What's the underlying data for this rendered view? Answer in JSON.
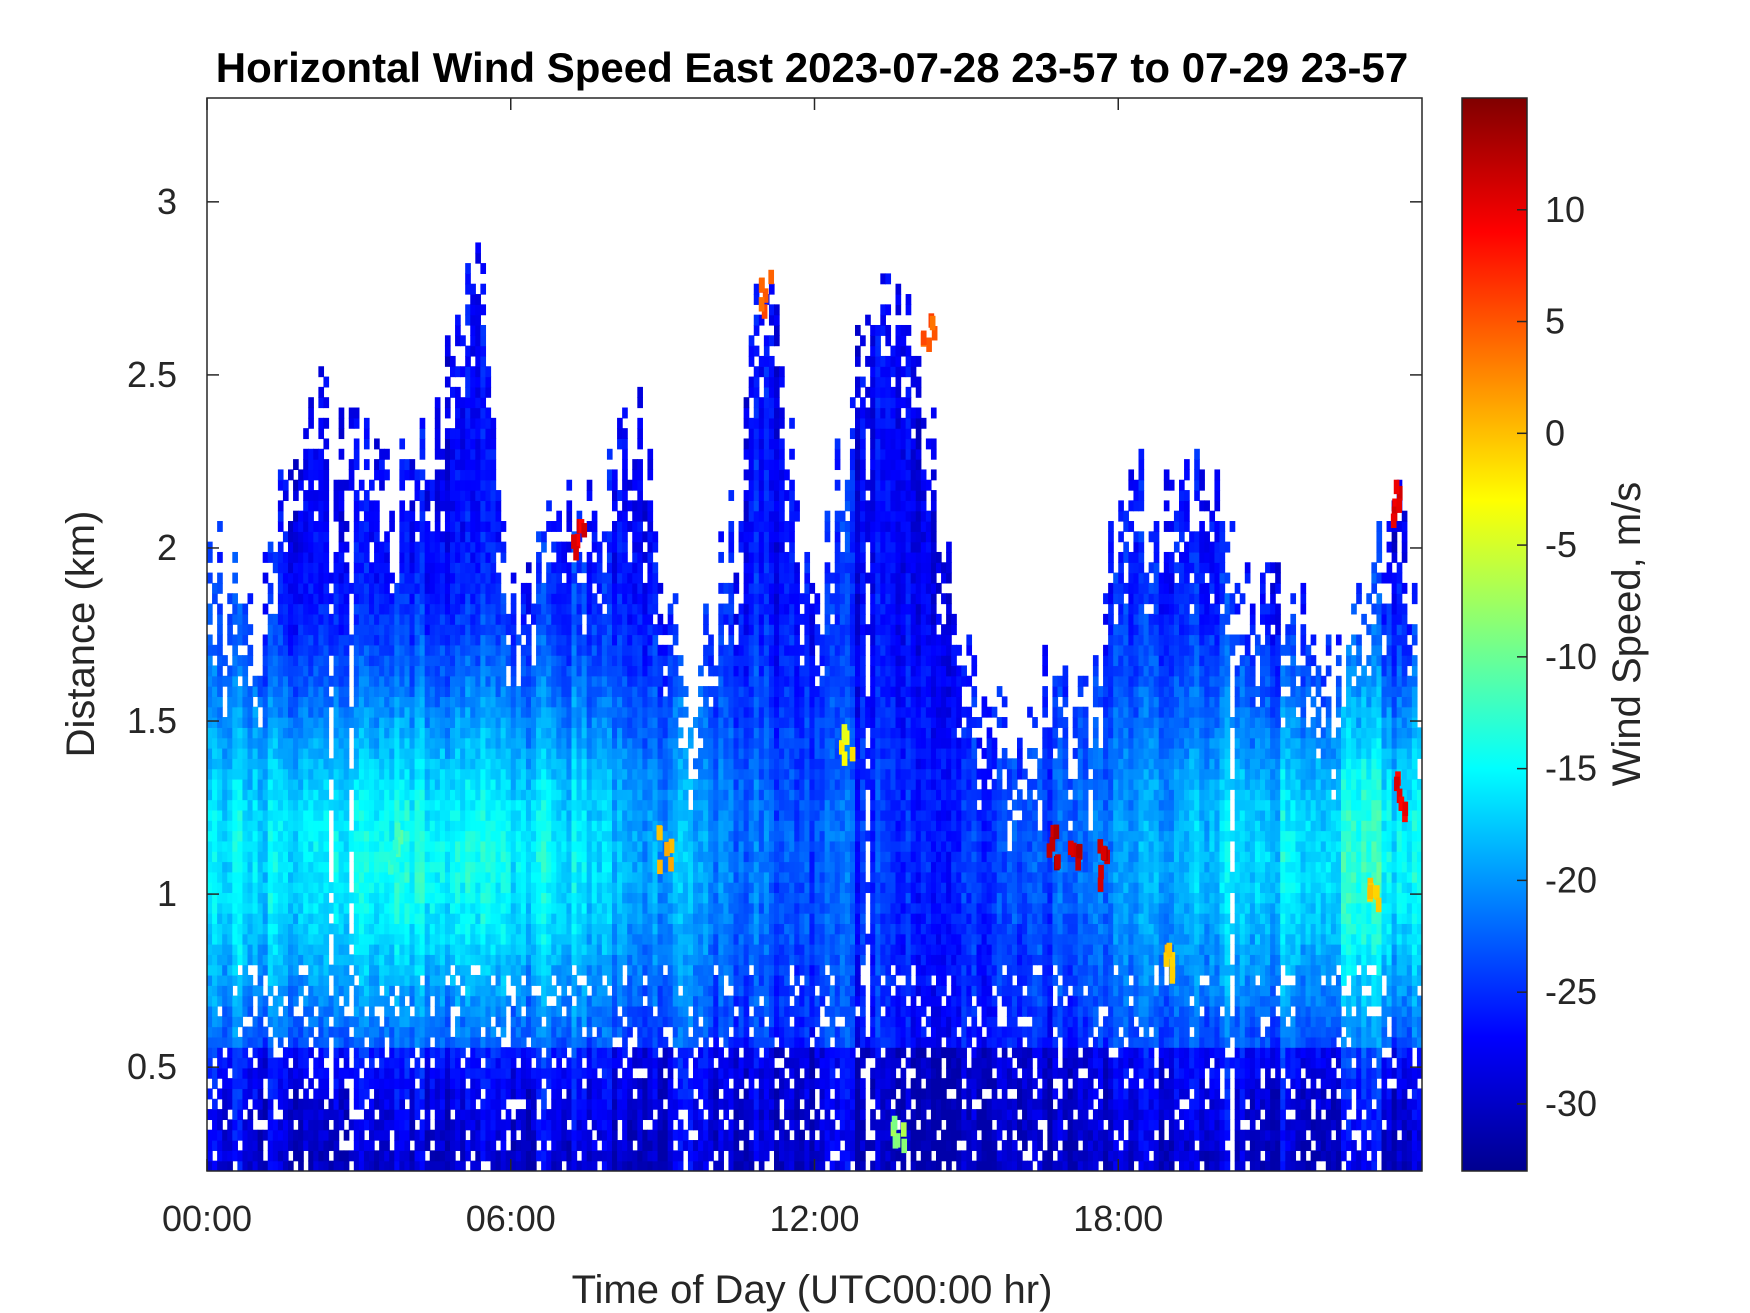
{
  "chart_data": {
    "type": "heatmap",
    "title": "Horizontal Wind Speed East 2023-07-28 23-57 to 07-29 23-57",
    "xlabel": "Time of Day (UTC00:00 hr)",
    "ylabel": "Distance (km)",
    "colorbar_label": "Wind Speed, m/s",
    "x_unit": "hours",
    "xlim": [
      0,
      24
    ],
    "ylim": [
      0.2,
      3.3
    ],
    "x_ticks": [
      0,
      6,
      12,
      18
    ],
    "x_tick_labels": [
      "00:00",
      "06:00",
      "12:00",
      "18:00"
    ],
    "y_ticks": [
      0.5,
      1,
      1.5,
      2,
      2.5,
      3
    ],
    "y_tick_labels": [
      "0.5",
      "1",
      "1.5",
      "2",
      "2.5",
      "3"
    ],
    "colorbar_range": [
      -33,
      15
    ],
    "colorbar_ticks": [
      10,
      5,
      0,
      -5,
      -10,
      -15,
      -20,
      -25,
      -30
    ],
    "colorbar_tick_labels": [
      "10",
      "5",
      "0",
      "-5",
      "-10",
      "-15",
      "-20",
      "-25",
      "-30"
    ],
    "colormap": "jet",
    "grid": false,
    "data_top_km": [
      [
        0.0,
        2.0
      ],
      [
        1.0,
        1.75
      ],
      [
        2.0,
        2.45
      ],
      [
        3.5,
        2.2
      ],
      [
        4.5,
        2.35
      ],
      [
        5.3,
        2.9
      ],
      [
        6.0,
        1.9
      ],
      [
        7.5,
        2.1
      ],
      [
        8.5,
        2.4
      ],
      [
        9.5,
        1.55
      ],
      [
        10.5,
        2.1
      ],
      [
        11.0,
        2.85
      ],
      [
        12.0,
        1.75
      ],
      [
        13.0,
        2.75
      ],
      [
        14.0,
        2.6
      ],
      [
        14.8,
        1.85
      ],
      [
        15.5,
        1.45
      ],
      [
        16.5,
        1.55
      ],
      [
        17.5,
        1.6
      ],
      [
        18.0,
        2.1
      ],
      [
        19.5,
        2.2
      ],
      [
        21.0,
        1.85
      ],
      [
        22.5,
        1.65
      ],
      [
        23.5,
        2.2
      ],
      [
        24.0,
        1.6
      ]
    ],
    "notable_features": [
      {
        "x": 3.7,
        "y": 1.15,
        "value": -12
      },
      {
        "x": 7.3,
        "y": 2.05,
        "value": 10
      },
      {
        "x": 9.0,
        "y": 1.15,
        "value": 0
      },
      {
        "x": 11.0,
        "y": 2.75,
        "value": 5
      },
      {
        "x": 12.6,
        "y": 1.45,
        "value": -3
      },
      {
        "x": 13.6,
        "y": 0.35,
        "value": -8
      },
      {
        "x": 14.2,
        "y": 2.65,
        "value": 5
      },
      {
        "x": 16.7,
        "y": 1.15,
        "value": 12
      },
      {
        "x": 17.1,
        "y": 1.15,
        "value": 12
      },
      {
        "x": 17.7,
        "y": 1.1,
        "value": 12
      },
      {
        "x": 19.0,
        "y": 0.8,
        "value": 0
      },
      {
        "x": 23.0,
        "y": 1.0,
        "value": 0
      },
      {
        "x": 23.4,
        "y": 2.15,
        "value": 10
      },
      {
        "x": 23.5,
        "y": 1.3,
        "value": 10
      }
    ]
  }
}
